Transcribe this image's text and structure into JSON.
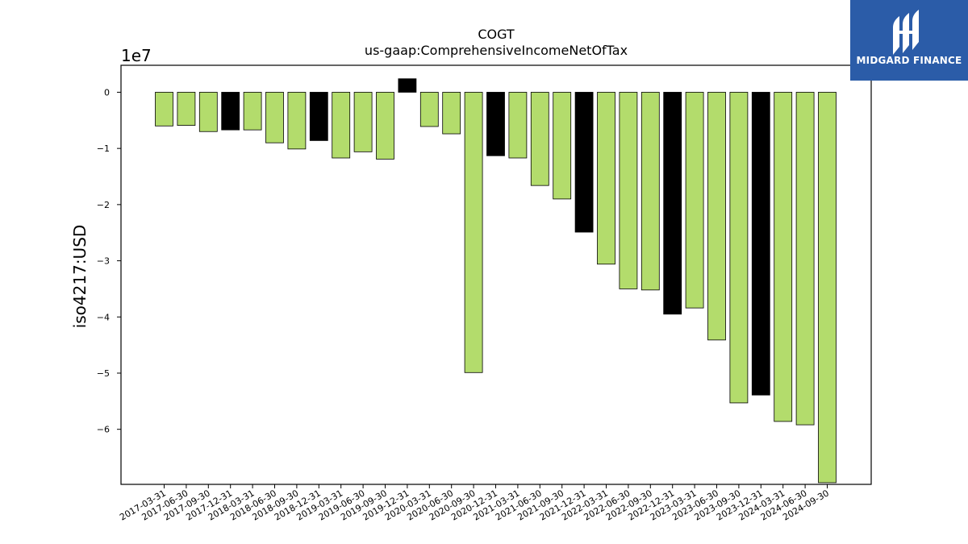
{
  "brand": {
    "name": "MIDGARD FINANCE",
    "bg_color": "#2b5ca8"
  },
  "chart_data": {
    "type": "bar",
    "title_line1": "COGT",
    "title_line2": "us-gaap:ComprehensiveIncomeNetOfTax",
    "ylabel": "iso4217:USD",
    "xlabel": "",
    "offset_text": "1e7",
    "scale": 10000000,
    "ylim": [
      -6.98,
      0.48
    ],
    "yticks": [
      0,
      -1,
      -2,
      -3,
      -4,
      -5,
      -6
    ],
    "grid": false,
    "legend": "none",
    "colors": {
      "quarter": "#b3dc6c",
      "fiscal_year_end": "#000000"
    },
    "categories": [
      "2017-03-31",
      "2017-06-30",
      "2017-09-30",
      "2017-12-31",
      "2018-03-31",
      "2018-06-30",
      "2018-09-30",
      "2018-12-31",
      "2019-03-31",
      "2019-06-30",
      "2019-09-30",
      "2019-12-31",
      "2020-03-31",
      "2020-06-30",
      "2020-09-30",
      "2020-12-31",
      "2021-03-31",
      "2021-06-30",
      "2021-09-30",
      "2021-12-31",
      "2022-03-31",
      "2022-06-30",
      "2022-09-30",
      "2022-12-31",
      "2023-03-31",
      "2023-06-30",
      "2023-09-30",
      "2023-12-31",
      "2024-03-31",
      "2024-06-30",
      "2024-09-30"
    ],
    "values": [
      -0.6,
      -0.59,
      -0.7,
      -0.67,
      -0.67,
      -0.9,
      -1.01,
      -0.86,
      -1.17,
      -1.06,
      -1.19,
      0.24,
      -0.61,
      -0.74,
      -4.99,
      -1.13,
      -1.17,
      -1.66,
      -1.9,
      -2.49,
      -3.06,
      -3.5,
      -3.52,
      -3.95,
      -3.84,
      -4.41,
      -5.53,
      -5.39,
      -5.86,
      -5.92,
      -6.95
    ],
    "bar_color_key": [
      "quarter",
      "quarter",
      "quarter",
      "fiscal_year_end",
      "quarter",
      "quarter",
      "quarter",
      "fiscal_year_end",
      "quarter",
      "quarter",
      "quarter",
      "fiscal_year_end",
      "quarter",
      "quarter",
      "quarter",
      "fiscal_year_end",
      "quarter",
      "quarter",
      "quarter",
      "fiscal_year_end",
      "quarter",
      "quarter",
      "quarter",
      "fiscal_year_end",
      "quarter",
      "quarter",
      "quarter",
      "fiscal_year_end",
      "quarter",
      "quarter",
      "quarter"
    ]
  }
}
